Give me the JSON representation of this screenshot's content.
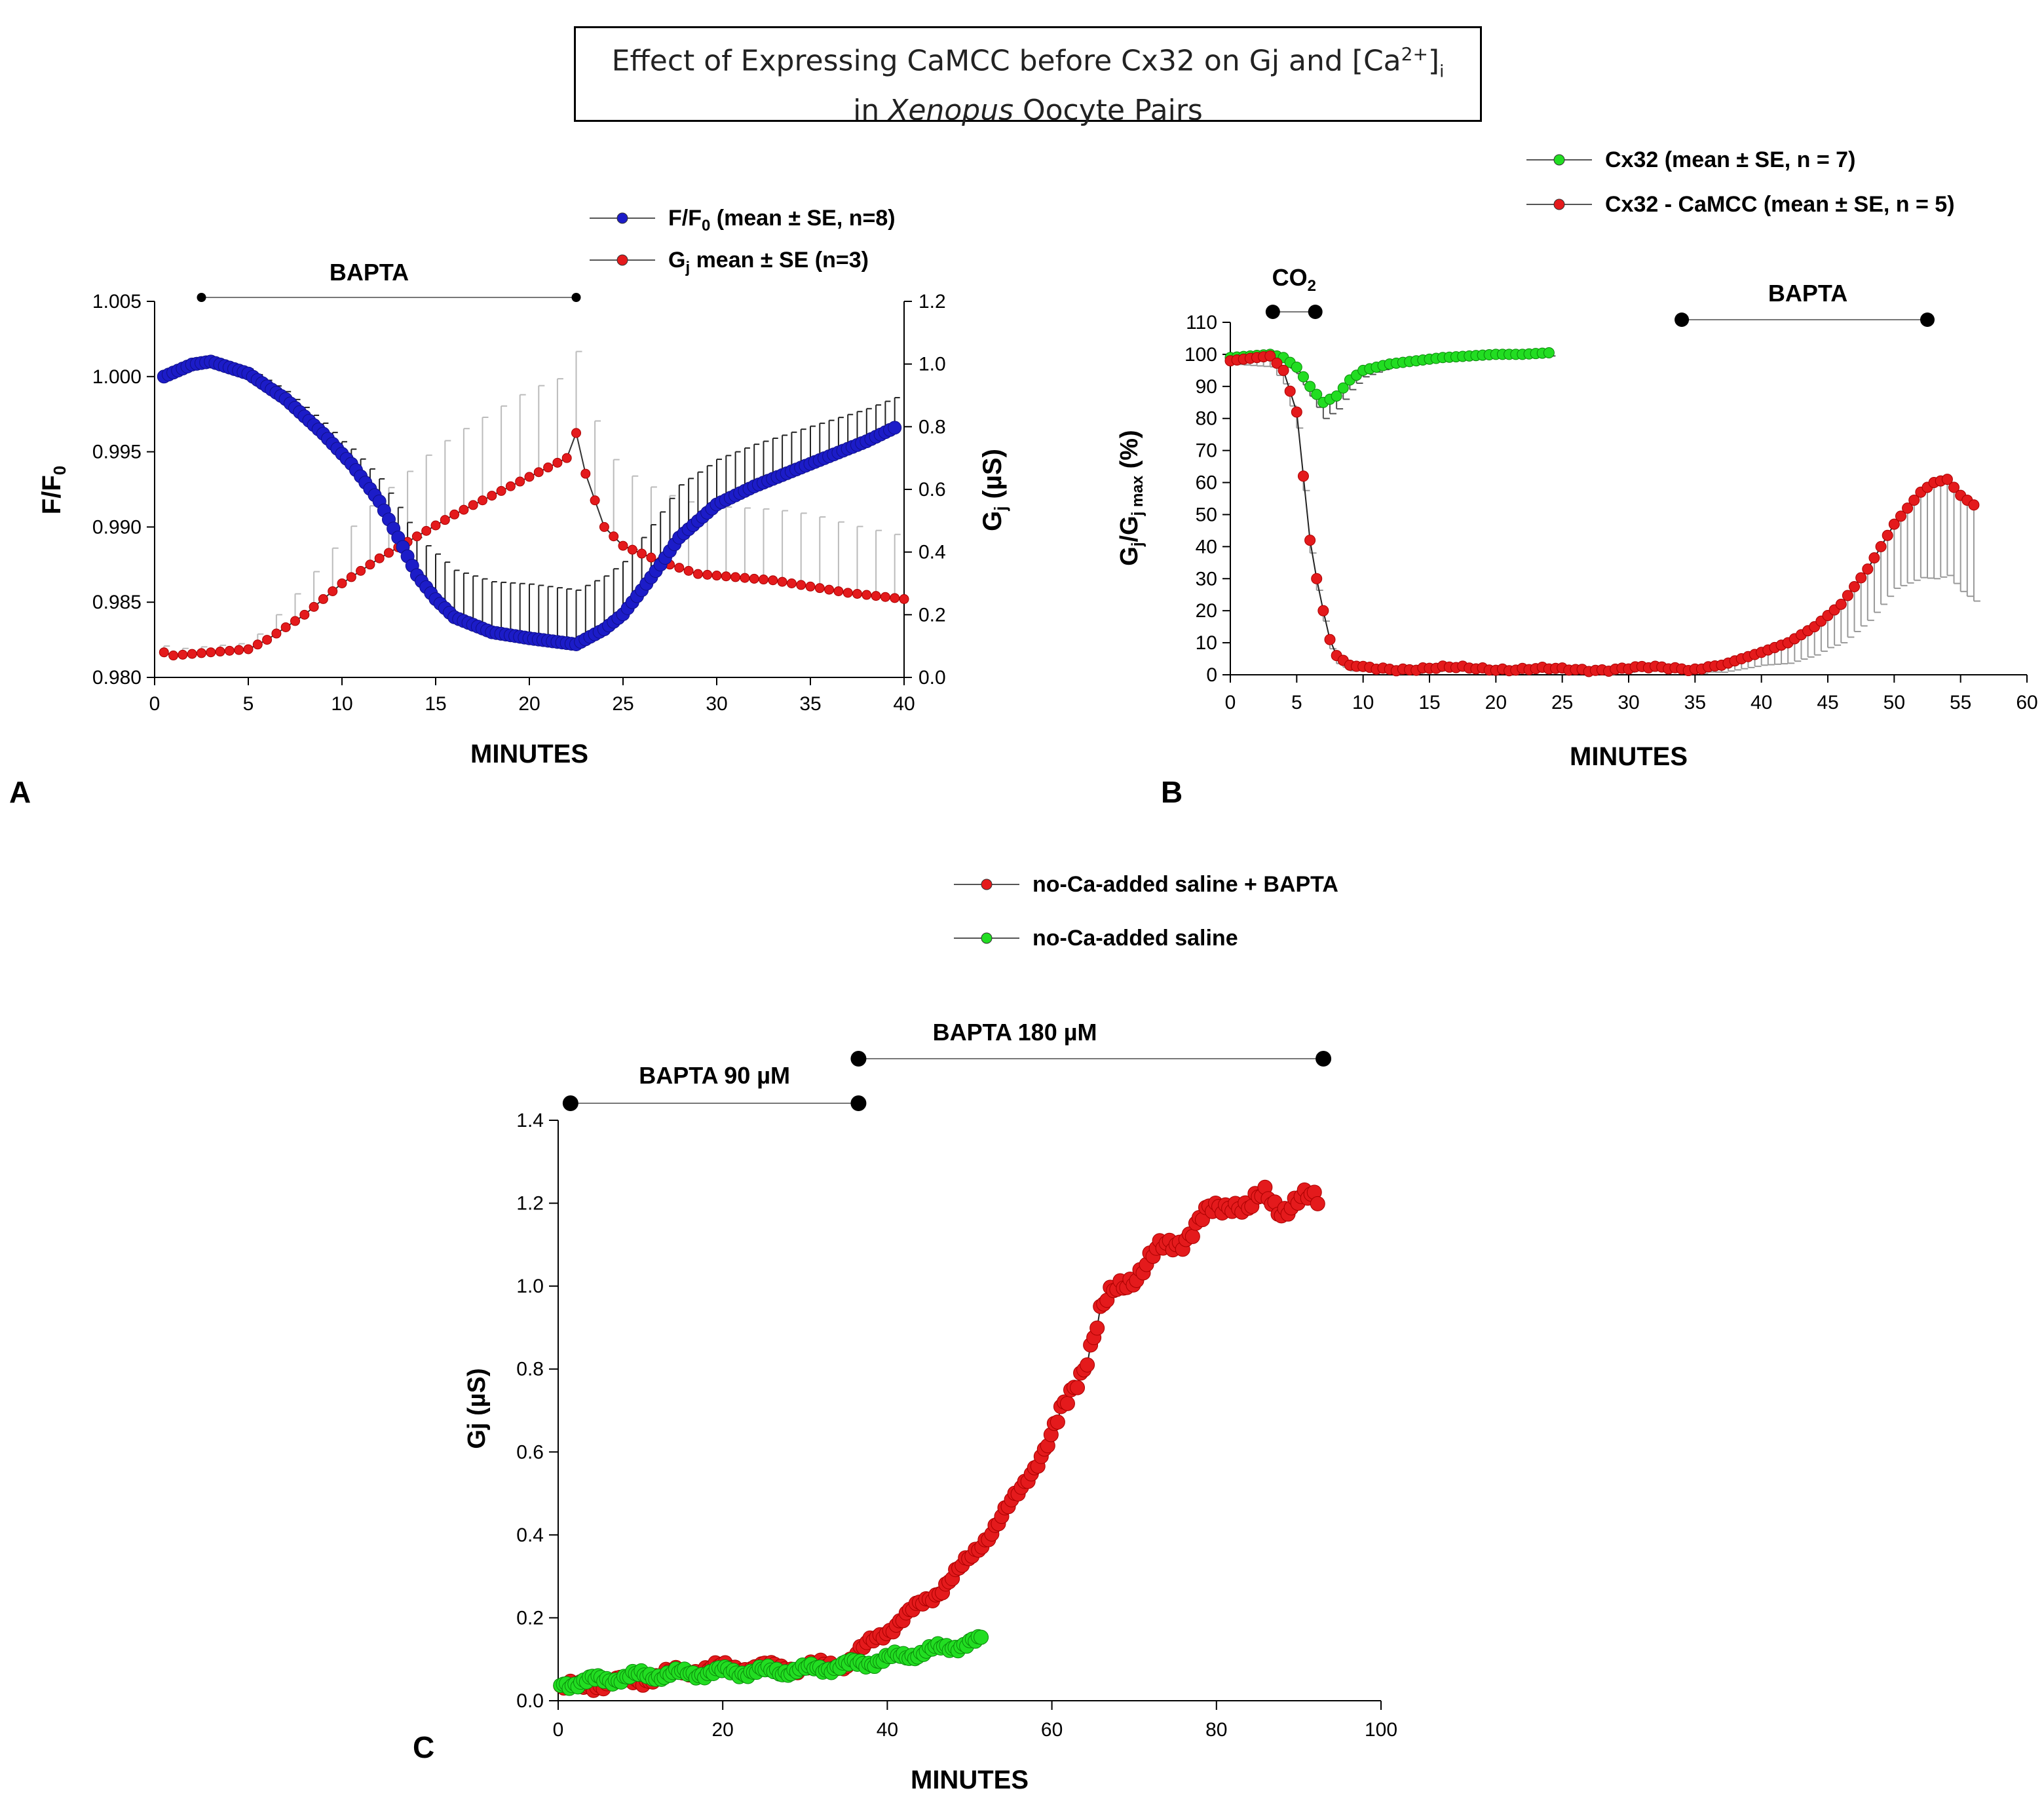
{
  "title": {
    "line1_a": "Effect of Expressing  CaMCC before Cx32 on Gj and [Ca",
    "line1_sup": "2+",
    "line1_b": "]",
    "line1_sub": "i",
    "line2_a": "in ",
    "line2_italic": "Xenopus",
    "line2_b": " Oocyte Pairs"
  },
  "panel_labels": {
    "a": "A",
    "b": "B",
    "c": "C"
  },
  "chart_data": [
    {
      "id": "A",
      "type": "line",
      "xlabel": "MINUTES",
      "ylabel_left": "F/F0",
      "ylabel_right": "Gj (µS)",
      "xlim": [
        0,
        40
      ],
      "xticks": [
        0,
        5,
        10,
        15,
        20,
        25,
        30,
        35,
        40
      ],
      "ylim_left": [
        0.98,
        1.005
      ],
      "yticks_left": [
        "0.980",
        "0.985",
        "0.990",
        "0.995",
        "1.000",
        "1.005"
      ],
      "ylim_right": [
        0,
        1.2
      ],
      "yticks_right": [
        "0.0",
        "0.2",
        "0.4",
        "0.6",
        "0.8",
        "1.0",
        "1.2"
      ],
      "bar_annotations": [
        {
          "label": "BAPTA",
          "x_start": 2.5,
          "x_end": 22.5
        }
      ],
      "legend_position": "top-right",
      "series": [
        {
          "name": "F/F0 (mean ± SE, n=8)",
          "axis": "left",
          "color": "#1c1cc8",
          "error_direction": "up",
          "points": [
            [
              0.5,
              1.0
            ],
            [
              2,
              1.0008
            ],
            [
              3,
              1.001
            ],
            [
              5,
              1.0002
            ],
            [
              7,
              0.9985
            ],
            [
              9,
              0.9962
            ],
            [
              10.5,
              0.9942
            ],
            [
              12,
              0.9917
            ],
            [
              13,
              0.9893
            ],
            [
              14,
              0.9868
            ],
            [
              15,
              0.9852
            ],
            [
              16,
              0.984
            ],
            [
              18,
              0.983
            ],
            [
              20,
              0.9826
            ],
            [
              22.5,
              0.9822
            ],
            [
              24,
              0.9832
            ],
            [
              25,
              0.9842
            ],
            [
              26,
              0.9858
            ],
            [
              27,
              0.9875
            ],
            [
              28,
              0.9893
            ],
            [
              30,
              0.9915
            ],
            [
              32,
              0.9927
            ],
            [
              35,
              0.9942
            ],
            [
              38,
              0.9957
            ],
            [
              39.5,
              0.9966
            ]
          ],
          "errors": [
            [
              0.5,
              0.0
            ],
            [
              5,
              0.0003
            ],
            [
              10,
              0.0008
            ],
            [
              12,
              0.0015
            ],
            [
              15,
              0.003
            ],
            [
              20,
              0.0036
            ],
            [
              22.5,
              0.0036
            ],
            [
              25,
              0.0035
            ],
            [
              28,
              0.0035
            ],
            [
              30,
              0.003
            ],
            [
              35,
              0.0025
            ],
            [
              39.5,
              0.002
            ]
          ]
        },
        {
          "name": "Gj mean ± SE (n=3)",
          "axis": "right",
          "color": "#e41a1c",
          "error_direction": "up",
          "points": [
            [
              0.5,
              0.08
            ],
            [
              1,
              0.07
            ],
            [
              3,
              0.08
            ],
            [
              5,
              0.09
            ],
            [
              6,
              0.12
            ],
            [
              8,
              0.2
            ],
            [
              10,
              0.3
            ],
            [
              12,
              0.38
            ],
            [
              14,
              0.45
            ],
            [
              16,
              0.52
            ],
            [
              18,
              0.58
            ],
            [
              20,
              0.64
            ],
            [
              22,
              0.7
            ],
            [
              22.5,
              0.78
            ],
            [
              23,
              0.65
            ],
            [
              24,
              0.48
            ],
            [
              25,
              0.42
            ],
            [
              27,
              0.37
            ],
            [
              29,
              0.33
            ],
            [
              31,
              0.32
            ],
            [
              33,
              0.31
            ],
            [
              35,
              0.29
            ],
            [
              37,
              0.27
            ],
            [
              40,
              0.25
            ]
          ],
          "errors": [
            [
              0.5,
              0.02
            ],
            [
              5,
              0.02
            ],
            [
              8,
              0.1
            ],
            [
              10,
              0.15
            ],
            [
              12,
              0.2
            ],
            [
              15,
              0.25
            ],
            [
              20,
              0.28
            ],
            [
              22.5,
              0.26
            ],
            [
              24,
              0.25
            ],
            [
              27,
              0.22
            ],
            [
              30,
              0.22
            ],
            [
              35,
              0.23
            ],
            [
              40,
              0.2
            ]
          ]
        }
      ]
    },
    {
      "id": "B",
      "type": "line",
      "xlabel": "MINUTES",
      "ylabel": "Gj/Gj max (%)",
      "xlim": [
        0,
        60
      ],
      "xticks": [
        0,
        5,
        10,
        15,
        20,
        25,
        30,
        35,
        40,
        45,
        50,
        55,
        60
      ],
      "ylim": [
        0,
        110
      ],
      "yticks": [
        0,
        10,
        20,
        30,
        40,
        50,
        60,
        70,
        80,
        90,
        100,
        110
      ],
      "bar_annotations": [
        {
          "label": "CO",
          "label_sub": "2",
          "x_start": 3.2,
          "x_end": 6.4
        },
        {
          "label": "BAPTA",
          "x_start": 34,
          "x_end": 52.5
        }
      ],
      "legend_position": "top-right",
      "series": [
        {
          "name": "Cx32 (mean ± SE, n = 7)",
          "color": "#22dd22",
          "error_direction": "down",
          "points": [
            [
              0,
              99
            ],
            [
              1.5,
              99.5
            ],
            [
              3,
              100
            ],
            [
              4,
              99
            ],
            [
              5,
              96
            ],
            [
              6,
              90
            ],
            [
              7,
              85
            ],
            [
              8,
              87
            ],
            [
              9,
              92
            ],
            [
              10,
              95
            ],
            [
              12,
              97
            ],
            [
              14,
              98
            ],
            [
              16,
              99
            ],
            [
              18,
              99.5
            ],
            [
              20,
              100
            ],
            [
              22,
              100
            ],
            [
              24,
              100.5
            ]
          ],
          "errors": [
            [
              0,
              2
            ],
            [
              3,
              1
            ],
            [
              5,
              2
            ],
            [
              6,
              3
            ],
            [
              7,
              5
            ],
            [
              8,
              4
            ],
            [
              9,
              3
            ],
            [
              10,
              2
            ],
            [
              12,
              1
            ],
            [
              24,
              1
            ]
          ]
        },
        {
          "name": "Cx32 - CaMCC (mean ± SE, n = 5)",
          "color": "#e41a1c",
          "error_direction": "down",
          "points": [
            [
              0,
              98
            ],
            [
              2,
              99
            ],
            [
              3,
              99.5
            ],
            [
              4,
              95
            ],
            [
              5,
              82
            ],
            [
              5.5,
              62
            ],
            [
              6,
              42
            ],
            [
              6.5,
              30
            ],
            [
              7,
              20
            ],
            [
              7.5,
              11
            ],
            [
              8,
              6
            ],
            [
              9,
              3
            ],
            [
              10,
              2
            ],
            [
              12,
              2
            ],
            [
              15,
              2
            ],
            [
              20,
              2
            ],
            [
              25,
              1.5
            ],
            [
              30,
              2
            ],
            [
              35,
              2
            ],
            [
              37,
              3
            ],
            [
              40,
              7
            ],
            [
              42,
              10
            ],
            [
              44,
              15
            ],
            [
              46,
              22
            ],
            [
              48,
              33
            ],
            [
              50,
              47
            ],
            [
              52,
              57
            ],
            [
              53,
              60
            ],
            [
              54,
              61
            ],
            [
              55,
              56
            ],
            [
              56,
              53
            ]
          ],
          "errors": [
            [
              0,
              1
            ],
            [
              5,
              5
            ],
            [
              6,
              4
            ],
            [
              10,
              1
            ],
            [
              35,
              1
            ],
            [
              40,
              4
            ],
            [
              45,
              10
            ],
            [
              50,
              20
            ],
            [
              53,
              30
            ],
            [
              56,
              30
            ]
          ]
        }
      ]
    },
    {
      "id": "C",
      "type": "scatter",
      "xlabel": "MINUTES",
      "ylabel": "Gj (µS)",
      "xlim": [
        0,
        100
      ],
      "xticks": [
        0,
        20,
        40,
        60,
        80,
        100
      ],
      "ylim": [
        0,
        1.4
      ],
      "yticks": [
        "0.0",
        "0.2",
        "0.4",
        "0.6",
        "0.8",
        "1.0",
        "1.2",
        "1.4"
      ],
      "bar_annotations": [
        {
          "label": "BAPTA 90 µM",
          "x_start": 1.5,
          "x_end": 36.5
        },
        {
          "label": "BAPTA 180 µM",
          "x_start": 36.5,
          "x_end": 93
        }
      ],
      "legend_position": "top-right",
      "series": [
        {
          "name": "no-Ca-added saline + BAPTA",
          "color": "#e41a1c",
          "points": [
            [
              0,
              0.03
            ],
            [
              5,
              0.04
            ],
            [
              10,
              0.05
            ],
            [
              15,
              0.07
            ],
            [
              20,
              0.08
            ],
            [
              25,
              0.08
            ],
            [
              30,
              0.08
            ],
            [
              35,
              0.09
            ],
            [
              38,
              0.14
            ],
            [
              42,
              0.2
            ],
            [
              46,
              0.26
            ],
            [
              50,
              0.34
            ],
            [
              53,
              0.42
            ],
            [
              56,
              0.5
            ],
            [
              58,
              0.57
            ],
            [
              60,
              0.64
            ],
            [
              62,
              0.72
            ],
            [
              64,
              0.82
            ],
            [
              66,
              0.94
            ],
            [
              68,
              0.99
            ],
            [
              70,
              1.03
            ],
            [
              73,
              1.08
            ],
            [
              76,
              1.12
            ],
            [
              79,
              1.17
            ],
            [
              82,
              1.21
            ],
            [
              84,
              1.18
            ],
            [
              86,
              1.22
            ],
            [
              88,
              1.19
            ],
            [
              90,
              1.2
            ],
            [
              92,
              1.21
            ]
          ]
        },
        {
          "name": "no-Ca-added saline",
          "color": "#22dd22",
          "points": [
            [
              0,
              0.04
            ],
            [
              5,
              0.05
            ],
            [
              10,
              0.06
            ],
            [
              15,
              0.065
            ],
            [
              20,
              0.07
            ],
            [
              25,
              0.07
            ],
            [
              30,
              0.075
            ],
            [
              35,
              0.085
            ],
            [
              40,
              0.1
            ],
            [
              45,
              0.12
            ],
            [
              50,
              0.14
            ],
            [
              52,
              0.145
            ]
          ]
        }
      ]
    }
  ]
}
